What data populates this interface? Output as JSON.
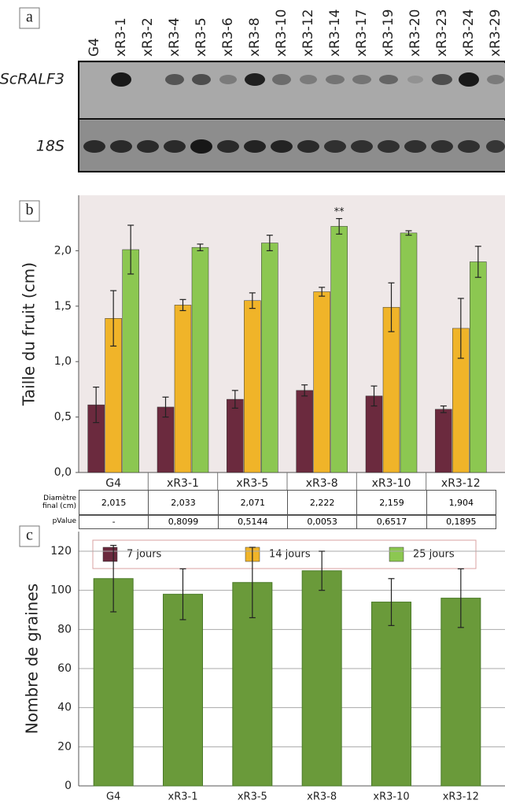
{
  "panel_a": {
    "label": "a",
    "lanes": [
      "G4",
      "xR3-1",
      "xR3-2",
      "xR3-4",
      "xR3-5",
      "xR3-6",
      "xR3-8",
      "xR3-10",
      "xR3-12",
      "xR3-14",
      "xR3-17",
      "xR3-19",
      "xR3-20",
      "xR3-23",
      "xR3-24",
      "xR3-29"
    ],
    "rows": [
      "ScRALF3",
      "18S"
    ]
  },
  "chart_data": [
    {
      "type": "bar",
      "panel_label": "b",
      "y_label": "Taille du fruit (cm)",
      "categories": [
        "G4",
        "xR3-1",
        "xR3-5",
        "xR3-8",
        "xR3-10",
        "xR3-12"
      ],
      "series": [
        {
          "name": "7 jours",
          "color": "#6b2a3e",
          "values": [
            0.61,
            0.59,
            0.66,
            0.74,
            0.69,
            0.57
          ],
          "errors": [
            0.16,
            0.09,
            0.08,
            0.05,
            0.09,
            0.03
          ]
        },
        {
          "name": "14 jours",
          "color": "#f0b429",
          "values": [
            1.39,
            1.51,
            1.55,
            1.63,
            1.49,
            1.3
          ],
          "errors": [
            0.25,
            0.05,
            0.07,
            0.04,
            0.22,
            0.27
          ]
        },
        {
          "name": "25 jours",
          "color": "#8cc751",
          "values": [
            2.01,
            2.03,
            2.07,
            2.22,
            2.16,
            1.9
          ],
          "errors": [
            0.22,
            0.03,
            0.07,
            0.07,
            0.02,
            0.14
          ],
          "significance": [
            null,
            null,
            null,
            "**",
            null,
            null
          ]
        }
      ],
      "ylim": [
        0,
        2.5
      ],
      "yticks": [
        {
          "value": 0,
          "label": "0,0"
        },
        {
          "value": 0.5,
          "label": "0,5"
        },
        {
          "value": 1,
          "label": "1,0"
        },
        {
          "value": 1.5,
          "label": "1,5"
        },
        {
          "value": 2,
          "label": "2,0"
        }
      ],
      "grid": false
    },
    {
      "type": "bar",
      "panel_label": "c",
      "y_label": "Nombre de graines",
      "categories": [
        "G4",
        "xR3-1",
        "xR3-5",
        "xR3-8",
        "xR3-10",
        "xR3-12"
      ],
      "values": [
        106,
        98,
        104,
        110,
        94,
        96
      ],
      "errors": [
        17,
        13,
        18,
        10,
        12,
        15
      ],
      "color": "#6a9a3a",
      "ylim": [
        0,
        130
      ],
      "yticks": [
        0,
        20,
        40,
        60,
        80,
        100,
        120
      ],
      "grid": true
    }
  ],
  "table": {
    "row_labels": [
      "Diamètre final (cm)",
      "pValue"
    ],
    "rows": [
      [
        "2,015",
        "2,033",
        "2,071",
        "2,222",
        "2,159",
        "1,904"
      ],
      [
        "-",
        "0,8099",
        "0,5144",
        "0,0053",
        "0,6517",
        "0,1895"
      ]
    ]
  }
}
